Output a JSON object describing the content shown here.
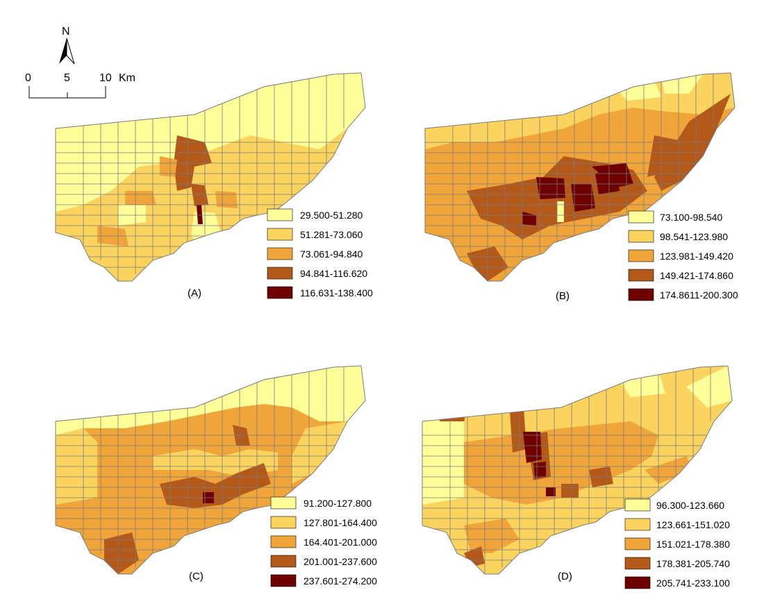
{
  "north_arrow": {
    "label": "N"
  },
  "scale_bar": {
    "ticks": [
      "0",
      "5",
      "10"
    ],
    "unit": "Km"
  },
  "colors": [
    "#ffff99",
    "#fbd460",
    "#f0a53a",
    "#b35a1a",
    "#6e0000"
  ],
  "panels": [
    {
      "label": "(A)",
      "legend": [
        "29.500-51.280",
        "51.281-73.060",
        "73.061-94.840",
        "94.841-116.620",
        "116.631-138.400"
      ]
    },
    {
      "label": "(B)",
      "legend": [
        "73.100-98.540",
        "98.541-123.980",
        "123.981-149.420",
        "149.421-174.860",
        "174.8611-200.300"
      ]
    },
    {
      "label": "(C)",
      "legend": [
        "91.200-127.800",
        "127.801-164.400",
        "164.401-201.000",
        "201.001-237.600",
        "237.601-274.200"
      ]
    },
    {
      "label": "(D)",
      "legend": [
        "96.300-123.660",
        "123.661-151.020",
        "151.021-178.380",
        "178.381-205.740",
        "205.741-233.100"
      ]
    }
  ]
}
